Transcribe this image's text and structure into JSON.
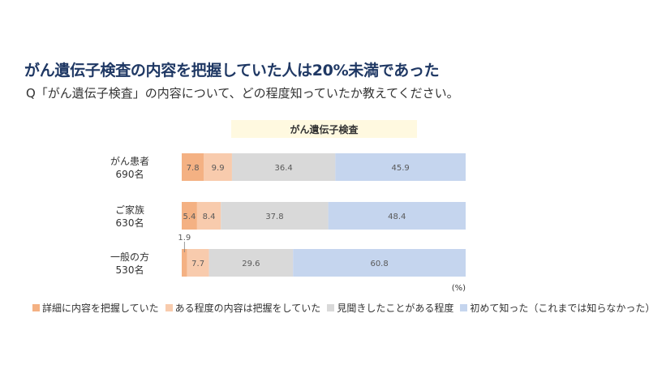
{
  "header": {
    "headline": "がん遺伝子検査の内容を把握していた人は20%未満であった",
    "question": "Q「がん遺伝子検査」の内容について、どの程度知っていたか教えてください。"
  },
  "chart_data": {
    "type": "bar",
    "orientation": "horizontal",
    "stacked": true,
    "title": "がん遺伝子検査",
    "unit_label": "(%)",
    "xlim": [
      0,
      100
    ],
    "categories": [
      {
        "name": "がん患者",
        "count": "690名"
      },
      {
        "name": "ご家族",
        "count": "630名"
      },
      {
        "name": "一般の方",
        "count": "530名"
      }
    ],
    "series": [
      {
        "name": "詳細に内容を把握していた",
        "color": "#f4b183",
        "values": [
          7.8,
          5.4,
          1.9
        ]
      },
      {
        "name": "ある程度の内容は把握をしていた",
        "color": "#f8cbad",
        "values": [
          9.9,
          8.4,
          7.7
        ]
      },
      {
        "name": "見聞きしたことがある程度",
        "color": "#d9d9d9",
        "values": [
          36.4,
          37.8,
          29.6
        ]
      },
      {
        "name": "初めて知った（これまでは知らなかった）",
        "color": "#c5d5ee",
        "values": [
          45.9,
          48.4,
          60.8
        ]
      }
    ],
    "legend_position": "bottom",
    "grid": false
  }
}
